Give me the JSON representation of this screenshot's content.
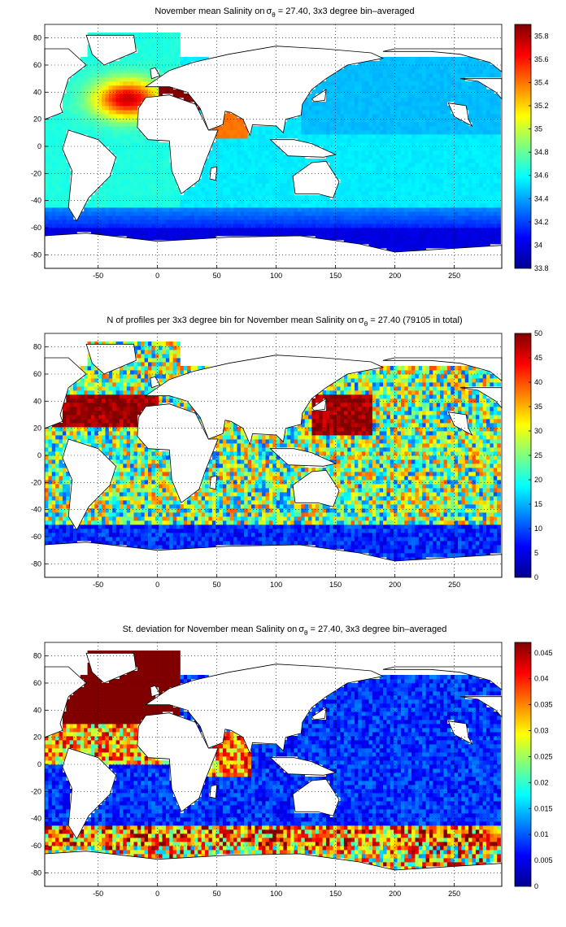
{
  "chart_data": [
    {
      "type": "heatmap",
      "title": "November mean Salinity on σθ = 27.40, 3x3 degree bin–averaged",
      "title_parts": [
        "November mean Salinity on",
        "σ",
        "θ",
        " = 27.40, 3x3 degree bin–averaged"
      ],
      "x_ticks": [
        -50,
        0,
        50,
        100,
        150,
        200,
        250
      ],
      "y_ticks": [
        80,
        60,
        40,
        20,
        0,
        -20,
        -40,
        -60,
        -80
      ],
      "xlim": [
        -95,
        290
      ],
      "ylim": [
        -90,
        90
      ],
      "grid": true,
      "colormap": "jet",
      "colorbar": {
        "range": [
          33.8,
          35.9
        ],
        "ticks": [
          "35.8",
          "35.6",
          "35.4",
          "35.2",
          "35",
          "34.8",
          "34.6",
          "34.4",
          "34.2",
          "34",
          "33.8"
        ]
      },
      "approx_regional_values": {
        "north_atlantic_subtropical_core": 35.7,
        "mediterranean_outflow": 35.9,
        "red_sea_arabian_sea": 35.5,
        "atlantic_south": 34.6,
        "pacific": 34.5,
        "southern_ocean": 34.3,
        "antarctic_margin": 34.0
      }
    },
    {
      "type": "heatmap",
      "title": "N of profiles per 3x3 degree bin for November mean Salinity on σθ = 27.40 (79105 in total)",
      "title_parts": [
        "N of profiles per 3x3 degree bin for November mean Salinity on",
        "σ",
        "θ",
        " = 27.40 (79105 in total)"
      ],
      "x_ticks": [
        -50,
        0,
        50,
        100,
        150,
        200,
        250
      ],
      "y_ticks": [
        80,
        60,
        40,
        20,
        0,
        -20,
        -40,
        -60,
        -80
      ],
      "xlim": [
        -95,
        290
      ],
      "ylim": [
        -90,
        90
      ],
      "grid": true,
      "colormap": "jet",
      "colorbar": {
        "range": [
          0,
          50
        ],
        "ticks": [
          "50",
          "45",
          "40",
          "35",
          "30",
          "25",
          "20",
          "15",
          "10",
          "5",
          "0"
        ]
      },
      "total_profiles": 79105
    },
    {
      "type": "heatmap",
      "title": "St. deviation for November mean Salinity on σθ = 27.40, 3x3 degree bin–averaged",
      "title_parts": [
        "St. deviation for November mean Salinity on",
        "σ",
        "θ",
        " = 27.40, 3x3 degree bin–averaged"
      ],
      "x_ticks": [
        -50,
        0,
        50,
        100,
        150,
        200,
        250
      ],
      "y_ticks": [
        80,
        60,
        40,
        20,
        0,
        -20,
        -40,
        -60,
        -80
      ],
      "xlim": [
        -95,
        290
      ],
      "ylim": [
        -90,
        90
      ],
      "grid": true,
      "colormap": "jet",
      "colorbar": {
        "range": [
          0,
          0.047
        ],
        "ticks": [
          "0.045",
          "0.04",
          "0.035",
          "0.03",
          "0.025",
          "0.02",
          "0.015",
          "0.01",
          "0.005",
          "0"
        ]
      }
    }
  ]
}
